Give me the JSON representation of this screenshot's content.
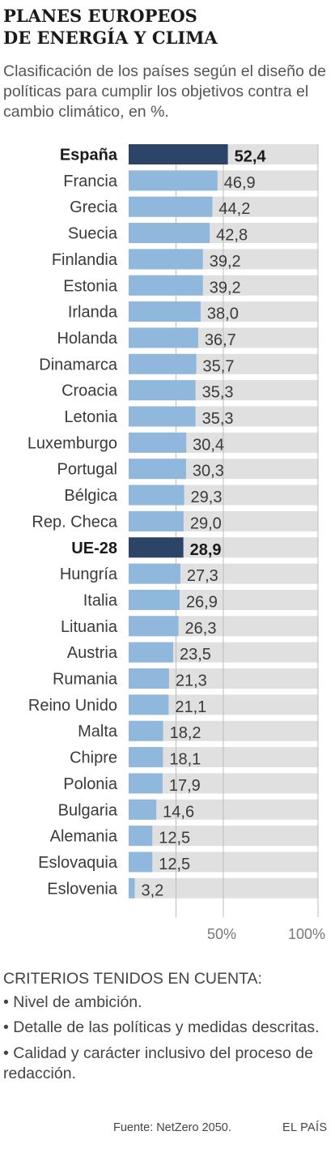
{
  "header": {
    "title": "PLANES EUROPEOS\nDE ENERGÍA Y CLIMA",
    "subtitle": "Clasificación de los países según el diseño de políticas para cumplir los objetivos contra el cambio climático, en %."
  },
  "chart_data": {
    "type": "bar",
    "orientation": "horizontal",
    "categories": [
      "España",
      "Francia",
      "Grecia",
      "Suecia",
      "Finlandia",
      "Estonia",
      "Irlanda",
      "Holanda",
      "Dinamarca",
      "Croacia",
      "Letonia",
      "Luxemburgo",
      "Portugal",
      "Bélgica",
      "Rep. Checa",
      "UE-28",
      "Hungría",
      "Italia",
      "Lituania",
      "Austria",
      "Rumania",
      "Reino Unido",
      "Malta",
      "Chipre",
      "Polonia",
      "Bulgaria",
      "Alemania",
      "Eslovaquia",
      "Eslovenia"
    ],
    "values": [
      52.4,
      46.9,
      44.2,
      42.8,
      39.2,
      39.2,
      38.0,
      36.7,
      35.7,
      35.3,
      35.3,
      30.4,
      30.3,
      29.3,
      29.0,
      28.9,
      27.3,
      26.9,
      26.3,
      23.5,
      21.3,
      21.1,
      18.2,
      18.1,
      17.9,
      14.6,
      12.5,
      12.5,
      3.2
    ],
    "value_labels": [
      "52,4",
      "46,9",
      "44,2",
      "42,8",
      "39,2",
      "39,2",
      "38,0",
      "36,7",
      "35,7",
      "35,3",
      "35,3",
      "30,4",
      "30,3",
      "29,3",
      "29,0",
      "28,9",
      "27,3",
      "26,9",
      "26,3",
      "23,5",
      "21,3",
      "21,1",
      "18,2",
      "18,1",
      "17,9",
      "14,6",
      "12,5",
      "12,5",
      "3,2"
    ],
    "highlighted": [
      "España",
      "UE-28"
    ],
    "xlim": [
      0,
      100
    ],
    "x_ticks": [
      50,
      100
    ],
    "x_tick_labels": [
      "50%",
      "100%"
    ],
    "grid": true,
    "colors": {
      "bar": "#8fb8dc",
      "bar_highlight": "#2c4466",
      "track": "#e0e0e0",
      "grid": "#bdbdbd",
      "label": "#3a3a3a",
      "label_highlight": "#1a1a1a"
    }
  },
  "notes": {
    "heading": "CRITERIOS TENIDOS EN CUENTA:",
    "items": [
      "Nivel de ambición.",
      "Detalle de las políticas y medidas descritas.",
      "Calidad y carácter inclusivo del proceso de redacción."
    ]
  },
  "footer": {
    "source": "Fuente: NetZero 2050.",
    "brand": "EL PAÍS"
  }
}
